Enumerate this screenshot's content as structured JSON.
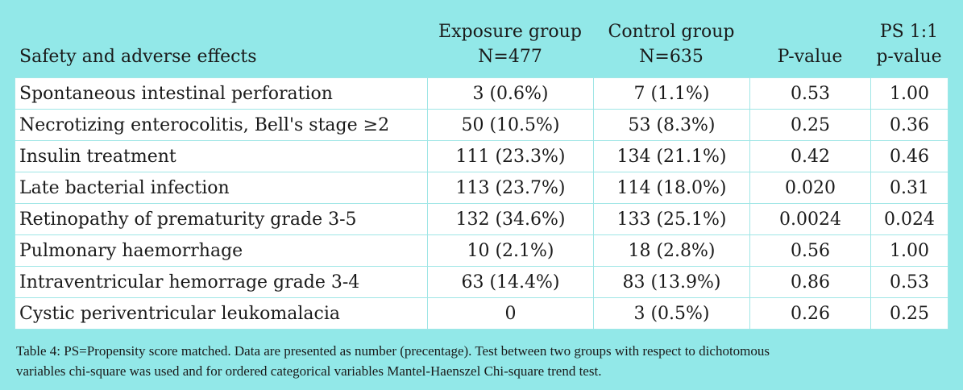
{
  "headers": {
    "item": "Safety and adverse effects",
    "exposure_line1": "Exposure group",
    "exposure_line2": "N=477",
    "control_line1": "Control group",
    "control_line2": "N=635",
    "pvalue": "P-value",
    "ps_line1": "PS 1:1",
    "ps_line2": "p-value"
  },
  "rows": [
    {
      "label": "Spontaneous intestinal perforation",
      "exposure": "3 (0.6%)",
      "control": "7 (1.1%)",
      "p": "0.53",
      "ps": "1.00"
    },
    {
      "label": "Necrotizing enterocolitis, Bell's stage ≥2",
      "exposure": "50 (10.5%)",
      "control": "53 (8.3%)",
      "p": "0.25",
      "ps": "0.36"
    },
    {
      "label": "Insulin treatment",
      "exposure": "111 (23.3%)",
      "control": "134 (21.1%)",
      "p": "0.42",
      "ps": "0.46"
    },
    {
      "label": "Late bacterial infection",
      "exposure": "113 (23.7%)",
      "control": "114 (18.0%)",
      "p": "0.020",
      "ps": "0.31"
    },
    {
      "label": "Retinopathy of prematurity grade 3-5",
      "exposure": "132 (34.6%)",
      "control": "133 (25.1%)",
      "p": "0.0024",
      "ps": "0.024"
    },
    {
      "label": "Pulmonary haemorrhage",
      "exposure": "10 (2.1%)",
      "control": "18 (2.8%)",
      "p": "0.56",
      "ps": "1.00"
    },
    {
      "label": "Intraventricular hemorrage grade 3-4",
      "exposure": "63 (14.4%)",
      "control": "83 (13.9%)",
      "p": "0.86",
      "ps": "0.53"
    },
    {
      "label": "Cystic periventricular leukomalacia",
      "exposure": "0",
      "control": "3 (0.5%)",
      "p": "0.26",
      "ps": "0.25"
    }
  ],
  "caption_line1": "Table 4: PS=Propensity score matched. Data are presented as number (precentage). Test between two groups with respect to dichotomous",
  "caption_line2": "variables chi-square was used and for ordered categorical variables Mantel-Haenszel Chi-square trend test."
}
